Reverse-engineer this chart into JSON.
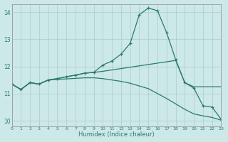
{
  "xlabel": "Humidex (Indice chaleur)",
  "xlim": [
    0,
    23
  ],
  "ylim": [
    9.8,
    14.3
  ],
  "yticks": [
    10,
    11,
    12,
    13,
    14
  ],
  "xticks": [
    0,
    1,
    2,
    3,
    4,
    5,
    6,
    7,
    8,
    9,
    10,
    11,
    12,
    13,
    14,
    15,
    16,
    17,
    18,
    19,
    20,
    21,
    22,
    23
  ],
  "background_color": "#cce8e8",
  "grid_color": "#aacccc",
  "line_color": "#2a7a6a",
  "curve1_x": [
    0,
    1,
    2,
    3,
    4,
    5,
    6,
    7,
    8,
    9,
    10,
    11,
    12,
    13,
    14,
    15,
    16,
    17,
    18,
    19,
    20,
    21,
    22,
    23
  ],
  "curve1_y": [
    11.35,
    11.15,
    11.4,
    11.35,
    11.5,
    11.55,
    11.62,
    11.68,
    11.75,
    11.78,
    12.05,
    12.2,
    12.45,
    12.85,
    13.9,
    14.15,
    14.05,
    13.25,
    12.25,
    11.4,
    11.2,
    10.55,
    10.5,
    10.05
  ],
  "curve2_x": [
    0,
    1,
    2,
    3,
    4,
    5,
    6,
    7,
    8,
    9,
    10,
    11,
    12,
    13,
    14,
    15,
    16,
    17,
    18,
    19,
    20,
    21,
    22,
    23
  ],
  "curve2_y": [
    11.35,
    11.15,
    11.4,
    11.35,
    11.5,
    11.55,
    11.62,
    11.68,
    11.75,
    11.78,
    11.82,
    11.87,
    11.92,
    11.97,
    12.02,
    12.07,
    12.12,
    12.17,
    12.22,
    11.4,
    11.25,
    11.25,
    11.25,
    11.25
  ],
  "curve3_x": [
    0,
    1,
    2,
    3,
    4,
    5,
    6,
    7,
    8,
    9,
    10,
    11,
    12,
    13,
    14,
    15,
    16,
    17,
    18,
    19,
    20,
    21,
    22,
    23
  ],
  "curve3_y": [
    11.35,
    11.15,
    11.4,
    11.35,
    11.5,
    11.52,
    11.54,
    11.56,
    11.58,
    11.58,
    11.55,
    11.5,
    11.45,
    11.38,
    11.28,
    11.18,
    11.0,
    10.82,
    10.62,
    10.42,
    10.25,
    10.18,
    10.12,
    10.02
  ]
}
